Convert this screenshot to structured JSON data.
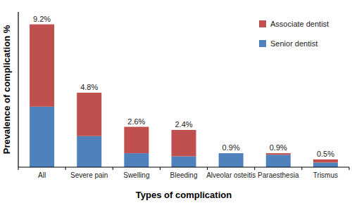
{
  "chart_data": {
    "type": "bar",
    "stacked": true,
    "x_label": "Types of complication",
    "y_label": "Prevalence of complication %",
    "categories": [
      "All",
      "Severe pain",
      "Swelling",
      "Bleeding",
      "Alveolar osteitis",
      "Paraesthesia",
      "Trismus"
    ],
    "series": [
      {
        "name": "Senior dentist",
        "color": "#4f81bd",
        "values": [
          3.9,
          2.0,
          0.9,
          0.7,
          0.9,
          0.8,
          0.3
        ]
      },
      {
        "name": "Associate dentist",
        "color": "#c0504d",
        "values": [
          5.3,
          2.8,
          1.7,
          1.7,
          0.0,
          0.1,
          0.2
        ]
      }
    ],
    "totals": [
      9.2,
      4.8,
      2.6,
      2.4,
      0.9,
      0.9,
      0.5
    ],
    "total_labels": [
      "9.2%",
      "4.8%",
      "2.6%",
      "2.4%",
      "0.9%",
      "0.9%",
      "0.5%"
    ],
    "ylim": [
      0,
      10
    ],
    "yticks": [],
    "tick_labels": "x",
    "grid": false,
    "legend": "upper right"
  }
}
